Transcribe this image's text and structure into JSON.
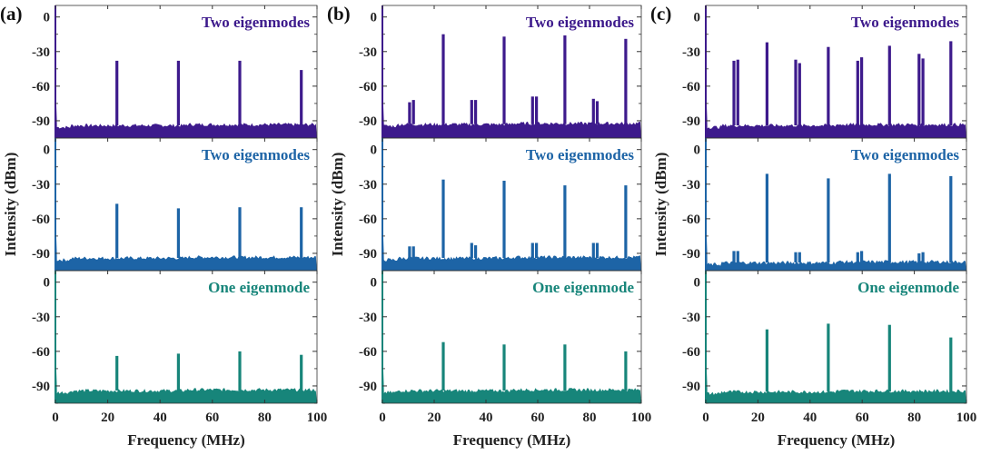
{
  "chart_data": [
    {
      "panel": "(a)",
      "type": "line",
      "xlabel": "Frequency (MHz)",
      "ylabel": "Intensity (dBm)",
      "xlim": [
        0,
        100
      ],
      "ylim": [
        -105,
        10
      ],
      "xticks": [
        "0",
        "20",
        "40",
        "60",
        "80",
        "100"
      ],
      "yticks": [
        "0",
        "-30",
        "-60",
        "-90"
      ],
      "subplots": [
        {
          "annotation": "Two eigenmodes",
          "color": "#3d1a8c",
          "noise_floor": -94,
          "peaks": [
            {
              "x": 23.5,
              "y": -38
            },
            {
              "x": 47,
              "y": -38
            },
            {
              "x": 70.5,
              "y": -38
            },
            {
              "x": 94,
              "y": -46
            }
          ]
        },
        {
          "annotation": "Two eigenmodes",
          "color": "#1d64a6",
          "noise_floor": -94,
          "peaks": [
            {
              "x": 23.5,
              "y": -47
            },
            {
              "x": 47,
              "y": -51
            },
            {
              "x": 70.5,
              "y": -50
            },
            {
              "x": 94,
              "y": -50
            }
          ]
        },
        {
          "annotation": "One eigenmode",
          "color": "#17857a",
          "noise_floor": -94,
          "peaks": [
            {
              "x": 23.5,
              "y": -64
            },
            {
              "x": 47,
              "y": -62
            },
            {
              "x": 70.5,
              "y": -60
            },
            {
              "x": 94,
              "y": -63
            }
          ]
        }
      ]
    },
    {
      "panel": "(b)",
      "type": "line",
      "xlabel": "Frequency (MHz)",
      "ylabel": "Intensity (dBm)",
      "xlim": [
        0,
        100
      ],
      "ylim": [
        -105,
        10
      ],
      "xticks": [
        "0",
        "20",
        "40",
        "60",
        "80",
        "100"
      ],
      "yticks": [
        "0",
        "-30",
        "-60",
        "-90"
      ],
      "subplots": [
        {
          "annotation": "Two eigenmodes",
          "color": "#3d1a8c",
          "noise_floor": -93,
          "peaks": [
            {
              "x": 10.5,
              "y": -74
            },
            {
              "x": 12,
              "y": -72
            },
            {
              "x": 23.5,
              "y": -15
            },
            {
              "x": 34.5,
              "y": -72
            },
            {
              "x": 36,
              "y": -72
            },
            {
              "x": 47,
              "y": -17
            },
            {
              "x": 58,
              "y": -69
            },
            {
              "x": 59.5,
              "y": -69
            },
            {
              "x": 70.5,
              "y": -16
            },
            {
              "x": 81.5,
              "y": -71
            },
            {
              "x": 83,
              "y": -73
            },
            {
              "x": 94,
              "y": -19
            }
          ]
        },
        {
          "annotation": "Two eigenmodes",
          "color": "#1d64a6",
          "noise_floor": -94,
          "peaks": [
            {
              "x": 10.5,
              "y": -84
            },
            {
              "x": 12,
              "y": -84
            },
            {
              "x": 23.5,
              "y": -26
            },
            {
              "x": 34.5,
              "y": -81
            },
            {
              "x": 36,
              "y": -83
            },
            {
              "x": 47,
              "y": -27
            },
            {
              "x": 58,
              "y": -81
            },
            {
              "x": 59.5,
              "y": -81
            },
            {
              "x": 70.5,
              "y": -31
            },
            {
              "x": 81.5,
              "y": -81
            },
            {
              "x": 83,
              "y": -81
            },
            {
              "x": 94,
              "y": -31
            }
          ]
        },
        {
          "annotation": "One eigenmode",
          "color": "#17857a",
          "noise_floor": -94,
          "peaks": [
            {
              "x": 23.5,
              "y": -52
            },
            {
              "x": 47,
              "y": -54
            },
            {
              "x": 70.5,
              "y": -54
            },
            {
              "x": 94,
              "y": -60
            }
          ]
        }
      ]
    },
    {
      "panel": "(c)",
      "type": "line",
      "xlabel": "Frequency (MHz)",
      "ylabel": "Intensity (dBm)",
      "xlim": [
        0,
        100
      ],
      "ylim": [
        -105,
        10
      ],
      "xticks": [
        "0",
        "20",
        "40",
        "60",
        "80",
        "100"
      ],
      "yticks": [
        "0",
        "-30",
        "-60",
        "-90"
      ],
      "subplots": [
        {
          "annotation": "Two eigenmodes",
          "color": "#3d1a8c",
          "noise_floor": -94,
          "peaks": [
            {
              "x": 10.8,
              "y": -38
            },
            {
              "x": 12.3,
              "y": -37
            },
            {
              "x": 23.5,
              "y": -22
            },
            {
              "x": 34.5,
              "y": -37
            },
            {
              "x": 36,
              "y": -40
            },
            {
              "x": 47,
              "y": -26
            },
            {
              "x": 58.3,
              "y": -38
            },
            {
              "x": 59.8,
              "y": -35
            },
            {
              "x": 70.5,
              "y": -25
            },
            {
              "x": 81.8,
              "y": -32
            },
            {
              "x": 83.3,
              "y": -36
            },
            {
              "x": 94,
              "y": -21
            }
          ]
        },
        {
          "annotation": "Two eigenmodes",
          "color": "#1d64a6",
          "noise_floor": -98,
          "peaks": [
            {
              "x": 10.8,
              "y": -88
            },
            {
              "x": 12.3,
              "y": -88
            },
            {
              "x": 23.5,
              "y": -21
            },
            {
              "x": 34.5,
              "y": -89
            },
            {
              "x": 36,
              "y": -89
            },
            {
              "x": 47,
              "y": -25
            },
            {
              "x": 58.3,
              "y": -89
            },
            {
              "x": 59.8,
              "y": -88
            },
            {
              "x": 70.5,
              "y": -21
            },
            {
              "x": 81.8,
              "y": -90
            },
            {
              "x": 83.3,
              "y": -89
            },
            {
              "x": 94,
              "y": -23
            }
          ]
        },
        {
          "annotation": "One eigenmode",
          "color": "#17857a",
          "noise_floor": -95,
          "peaks": [
            {
              "x": 23.5,
              "y": -41
            },
            {
              "x": 47,
              "y": -36
            },
            {
              "x": 70.5,
              "y": -37
            },
            {
              "x": 94,
              "y": -48
            }
          ]
        }
      ]
    }
  ]
}
